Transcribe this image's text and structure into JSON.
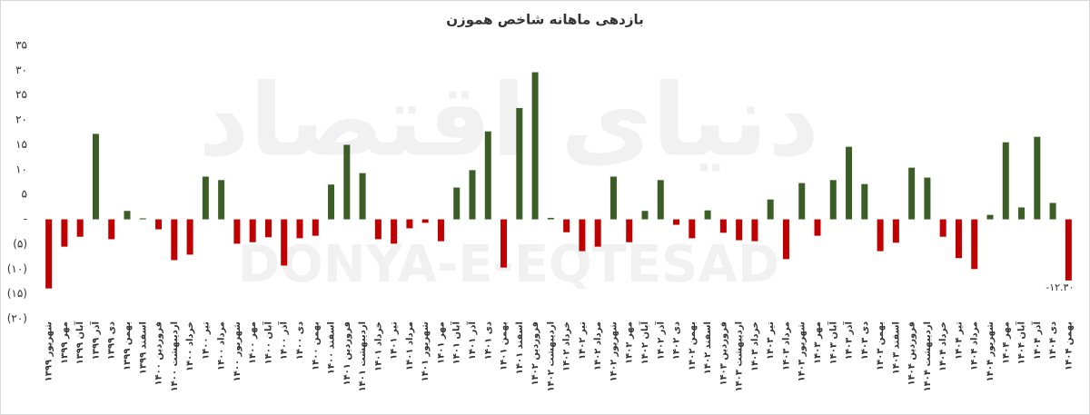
{
  "chart_data": {
    "type": "bar",
    "title": "بازدهی ماهانه شاخص هموزن",
    "watermark": "DONYA-E-EQTESAD",
    "watermark_fa": "دنیای اقتصاد",
    "categories": [
      "شهریور ۱۳۹۹",
      "مهر ۱۳۹۹",
      "آبان ۱۳۹۹",
      "آذر ۱۳۹۹",
      "دی ۱۳۹۹",
      "بهمن ۱۳۹۹",
      "اسفند ۱۳۹۹",
      "فروردین ۱۴۰۰",
      "اردیبهشت ۱۴۰۰",
      "خرداد ۱۴۰۰",
      "تیر ۱۴۰۰",
      "مرداد ۱۴۰۰",
      "شهریور ۱۴۰۰",
      "مهر ۱۴۰۰",
      "آبان ۱۴۰۰",
      "آذر ۱۴۰۰",
      "دی ۱۴۰۰",
      "بهمن ۱۴۰۰",
      "اسفند ۱۴۰۰",
      "فروردین ۱۴۰۱",
      "اردیبهشت ۱۴۰۱",
      "خرداد ۱۴۰۱",
      "تیر ۱۴۰۱",
      "مرداد ۱۴۰۱",
      "شهریور ۱۴۰۱",
      "مهر ۱۴۰۱",
      "آبان ۱۴۰۱",
      "آذر ۱۴۰۱",
      "دی ۱۴۰۱",
      "بهمن ۱۴۰۱",
      "اسفند ۱۴۰۱",
      "فروردین ۱۴۰۲",
      "اردیبهشت ۱۴۰۲",
      "خرداد ۱۴۰۲",
      "تیر ۱۴۰۲",
      "مرداد ۱۴۰۲",
      "شهریور ۱۴۰۲",
      "مهر ۱۴۰۲",
      "آبان ۱۴۰۲",
      "آذر ۱۴۰۲",
      "دی ۱۴۰۲",
      "بهمن ۱۴۰۲",
      "اسفند ۱۴۰۲",
      "فروردین ۱۴۰۳",
      "اردیبهشت ۱۴۰۳",
      "خرداد ۱۴۰۳",
      "تیر ۱۴۰۳",
      "مرداد ۱۴۰۳",
      "شهریور ۱۴۰۳",
      "مهر ۱۴۰۳",
      "آبان ۱۴۰۳",
      "آذر ۱۴۰۳",
      "دی ۱۴۰۳",
      "بهمن ۱۴۰۳",
      "اسفند ۱۴۰۳",
      "فروردین ۱۴۰۴",
      "اردیبهشت ۱۴۰۴",
      "خرداد ۱۴۰۴",
      "تیر ۱۴۰۴",
      "مرداد ۱۴۰۴",
      "شهریور ۱۴۰۴",
      "مهر ۱۴۰۴",
      "آبان ۱۴۰۴",
      "آذر ۱۴۰۴",
      "دی ۱۴۰۴",
      "بهمن ۱۴۰۴"
    ],
    "values": [
      -13.9,
      -5.5,
      -3.5,
      17.2,
      -4,
      1.7,
      0.2,
      -2,
      -8.2,
      -7.1,
      8.6,
      7.9,
      -4.9,
      -4.6,
      -3.6,
      -9.3,
      -3.8,
      -3.3,
      7,
      15,
      9.3,
      -4,
      -4.9,
      -1.8,
      -0.7,
      -4.4,
      6.4,
      9.9,
      17.7,
      -9.7,
      22.4,
      29.6,
      0.3,
      -2.6,
      -6.4,
      -5.5,
      8.6,
      -4.6,
      1.7,
      7.9,
      -1.1,
      -3.8,
      1.8,
      -2.7,
      -4.2,
      -4.4,
      4,
      -8,
      7.3,
      -3.3,
      7.9,
      14.6,
      7.1,
      -6.4,
      -4.7,
      10.4,
      8.4,
      -3.5,
      -7.8,
      -10,
      0.9,
      15.5,
      2.4,
      16.6,
      3.3,
      -12.3
    ],
    "value_labels": [
      null,
      null,
      null,
      null,
      null,
      null,
      null,
      null,
      null,
      null,
      null,
      null,
      null,
      null,
      null,
      null,
      null,
      null,
      null,
      null,
      null,
      null,
      null,
      null,
      null,
      null,
      null,
      null,
      null,
      null,
      null,
      null,
      null,
      null,
      null,
      null,
      null,
      null,
      null,
      null,
      null,
      null,
      null,
      null,
      null,
      null,
      null,
      null,
      null,
      null,
      null,
      null,
      null,
      null,
      null,
      null,
      null,
      null,
      null,
      null,
      null,
      null,
      null,
      null,
      null,
      "-۱۲.۳۰"
    ],
    "positive_color": "#3b5e27",
    "negative_color": "#c00000",
    "ylim": [
      -20,
      35
    ],
    "yticks": [
      {
        "value": 35,
        "label": "۳۵"
      },
      {
        "value": 30,
        "label": "۳۰"
      },
      {
        "value": 25,
        "label": "۲۵"
      },
      {
        "value": 20,
        "label": "۲۰"
      },
      {
        "value": 15,
        "label": "۱۵"
      },
      {
        "value": 10,
        "label": "۱۰"
      },
      {
        "value": 5,
        "label": "۵"
      },
      {
        "value": 0,
        "label": "-"
      },
      {
        "value": -5,
        "label": "(۵)"
      },
      {
        "value": -10,
        "label": "(۱۰)"
      },
      {
        "value": -15,
        "label": "(۱۵)"
      },
      {
        "value": -20,
        "label": "(۲۰)"
      }
    ],
    "grid": false
  }
}
